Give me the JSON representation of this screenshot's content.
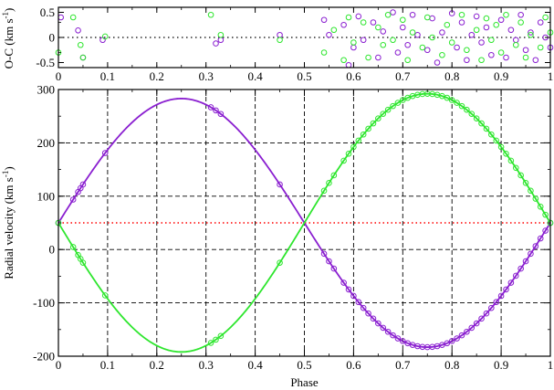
{
  "colors": {
    "primary": "#8a1fd0",
    "secondary": "#2ee62e",
    "systemic": "#ff0000",
    "grid": "#000000"
  },
  "chart_data": [
    {
      "type": "scatter",
      "panel": "residuals",
      "ylabel": "O-C (km s",
      "ylabel_sup": "-1",
      "ylabel_tail": ")",
      "xlim": [
        0,
        1
      ],
      "ylim": [
        -0.6,
        0.6
      ],
      "yticks": [
        "-0.5",
        "0",
        "0.5"
      ],
      "xtick_labels": [
        "0",
        "0.1",
        "0.2",
        "0.3",
        "0.4",
        "0.5",
        "0.6",
        "0.7",
        "0.8",
        "0.9",
        "1"
      ],
      "zero_line": 0,
      "series": [
        {
          "points": [
            [
              0.005,
              0.4
            ],
            [
              0.04,
              0.14
            ],
            [
              0.05,
              -0.4
            ],
            [
              0.09,
              -0.05
            ],
            [
              0.32,
              -0.12
            ],
            [
              0.33,
              -0.05
            ],
            [
              0.45,
              0.05
            ],
            [
              0.54,
              0.35
            ],
            [
              0.55,
              0.05
            ],
            [
              0.58,
              0.25
            ],
            [
              0.59,
              -0.55
            ],
            [
              0.6,
              -0.2
            ],
            [
              0.61,
              0.42
            ],
            [
              0.62,
              -0.05
            ],
            [
              0.64,
              0.3
            ],
            [
              0.65,
              -0.4
            ],
            [
              0.66,
              0.12
            ],
            [
              0.68,
              0.5
            ],
            [
              0.69,
              -0.3
            ],
            [
              0.7,
              0.2
            ],
            [
              0.71,
              -0.15
            ],
            [
              0.72,
              0.45
            ],
            [
              0.73,
              0.05
            ],
            [
              0.75,
              -0.25
            ],
            [
              0.76,
              0.38
            ],
            [
              0.77,
              -0.5
            ],
            [
              0.78,
              0.1
            ],
            [
              0.8,
              0.48
            ],
            [
              0.81,
              -0.2
            ],
            [
              0.82,
              0.3
            ],
            [
              0.83,
              -0.45
            ],
            [
              0.84,
              0.05
            ],
            [
              0.85,
              0.42
            ],
            [
              0.86,
              -0.1
            ],
            [
              0.87,
              0.2
            ],
            [
              0.88,
              -0.35
            ],
            [
              0.9,
              0.35
            ],
            [
              0.91,
              -0.4
            ],
            [
              0.92,
              0.15
            ],
            [
              0.93,
              -0.05
            ],
            [
              0.94,
              0.45
            ],
            [
              0.95,
              -0.25
            ],
            [
              0.96,
              0.1
            ],
            [
              0.97,
              -0.45
            ],
            [
              0.98,
              0.3
            ],
            [
              0.99,
              0.0
            ],
            [
              1.0,
              -0.2
            ]
          ]
        },
        {
          "points": [
            [
              0.0,
              -0.3
            ],
            [
              0.03,
              0.4
            ],
            [
              0.045,
              -0.15
            ],
            [
              0.05,
              -0.4
            ],
            [
              0.095,
              0.02
            ],
            [
              0.31,
              0.45
            ],
            [
              0.33,
              0.05
            ],
            [
              0.45,
              -0.05
            ],
            [
              0.54,
              -0.3
            ],
            [
              0.56,
              0.15
            ],
            [
              0.58,
              -0.45
            ],
            [
              0.59,
              0.4
            ],
            [
              0.6,
              -0.1
            ],
            [
              0.62,
              0.3
            ],
            [
              0.63,
              -0.4
            ],
            [
              0.65,
              0.2
            ],
            [
              0.66,
              -0.15
            ],
            [
              0.67,
              0.45
            ],
            [
              0.68,
              -0.05
            ],
            [
              0.7,
              0.35
            ],
            [
              0.71,
              -0.45
            ],
            [
              0.72,
              0.1
            ],
            [
              0.74,
              -0.2
            ],
            [
              0.75,
              0.4
            ],
            [
              0.76,
              0.0
            ],
            [
              0.78,
              -0.35
            ],
            [
              0.79,
              0.25
            ],
            [
              0.8,
              -0.1
            ],
            [
              0.82,
              0.45
            ],
            [
              0.83,
              -0.25
            ],
            [
              0.85,
              0.15
            ],
            [
              0.86,
              -0.45
            ],
            [
              0.87,
              0.38
            ],
            [
              0.88,
              -0.05
            ],
            [
              0.89,
              0.25
            ],
            [
              0.9,
              -0.3
            ],
            [
              0.91,
              0.45
            ],
            [
              0.93,
              -0.15
            ],
            [
              0.94,
              0.3
            ],
            [
              0.95,
              -0.4
            ],
            [
              0.96,
              0.05
            ],
            [
              0.98,
              -0.2
            ],
            [
              0.99,
              0.4
            ],
            [
              1.0,
              0.1
            ]
          ]
        }
      ]
    },
    {
      "type": "scatter",
      "panel": "radial-velocity",
      "xlabel": "Phase",
      "ylabel": "Radial velocity (km s",
      "ylabel_sup": "-1",
      "ylabel_tail": ")",
      "xlim": [
        0,
        1
      ],
      "ylim": [
        -200,
        300
      ],
      "yticks": [
        "-200",
        "-100",
        "0",
        "100",
        "200",
        "300"
      ],
      "xtick_labels": [
        "0",
        "0.1",
        "0.2",
        "0.3",
        "0.4",
        "0.5",
        "0.6",
        "0.7",
        "0.8",
        "0.9",
        "1"
      ],
      "grid": true,
      "systemic_velocity": 50,
      "orbit_fit": [
        {
          "gamma": 50,
          "K": 233
        },
        {
          "gamma": 50,
          "K": -242
        }
      ],
      "series": [
        {
          "phases": [
            0.0,
            0.03,
            0.04,
            0.045,
            0.05,
            0.095,
            0.31,
            0.32,
            0.33,
            0.45,
            0.54,
            0.55,
            0.56,
            0.58,
            0.59,
            0.6,
            0.61,
            0.62,
            0.63,
            0.64,
            0.65,
            0.66,
            0.67,
            0.68,
            0.69,
            0.7,
            0.71,
            0.72,
            0.73,
            0.74,
            0.75,
            0.76,
            0.77,
            0.78,
            0.79,
            0.8,
            0.81,
            0.82,
            0.83,
            0.84,
            0.85,
            0.86,
            0.87,
            0.88,
            0.89,
            0.9,
            0.91,
            0.92,
            0.93,
            0.94,
            0.95,
            0.96,
            0.97,
            0.98,
            0.99,
            1.0
          ]
        },
        {
          "phases": [
            0.0,
            0.03,
            0.04,
            0.045,
            0.05,
            0.095,
            0.31,
            0.32,
            0.33,
            0.45,
            0.54,
            0.55,
            0.56,
            0.58,
            0.59,
            0.6,
            0.61,
            0.62,
            0.63,
            0.64,
            0.65,
            0.66,
            0.67,
            0.68,
            0.69,
            0.7,
            0.71,
            0.72,
            0.73,
            0.74,
            0.75,
            0.76,
            0.77,
            0.78,
            0.79,
            0.8,
            0.81,
            0.82,
            0.83,
            0.84,
            0.85,
            0.86,
            0.87,
            0.88,
            0.89,
            0.9,
            0.91,
            0.92,
            0.93,
            0.94,
            0.95,
            0.96,
            0.97,
            0.98,
            0.99,
            1.0
          ]
        }
      ]
    }
  ]
}
